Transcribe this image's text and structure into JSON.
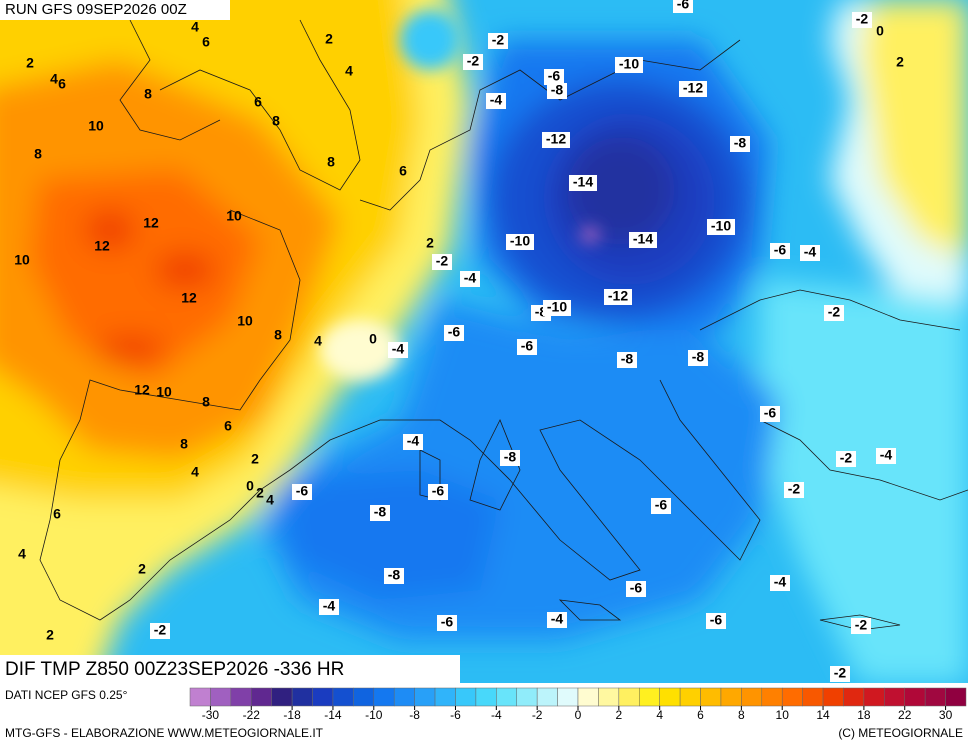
{
  "header": {
    "run": "RUN GFS 09SEP2026 00Z"
  },
  "footer": {
    "title": "DIF TMP Z850 00Z23SEP2026 -336 HR",
    "source": "DATI NCEP GFS 0.25°",
    "credit": "MTG-GFS - ELABORAZIONE WWW.METEOGIORNALE.IT",
    "copyright": "(C) METEOGIORNALE"
  },
  "colorbar": {
    "ticks": [
      -30,
      -22,
      -18,
      -14,
      -10,
      -8,
      -6,
      -4,
      -2,
      0,
      2,
      4,
      6,
      8,
      10,
      14,
      18,
      22,
      30
    ],
    "colors": [
      "#c080d0",
      "#a060c0",
      "#8040a8",
      "#602890",
      "#302080",
      "#2030a0",
      "#1a3cc0",
      "#1450d0",
      "#1064e0",
      "#1478f0",
      "#1e8cf5",
      "#28a0f8",
      "#30b4fa",
      "#38c8fa",
      "#48d8fa",
      "#68e4fa",
      "#90ecfa",
      "#bcf4fb",
      "#e0fbfc",
      "#fffcd0",
      "#fff8a0",
      "#fff060",
      "#fff020",
      "#ffe000",
      "#ffd000",
      "#ffbc00",
      "#ffa800",
      "#ff9400",
      "#ff8000",
      "#ff6c00",
      "#f85800",
      "#f04000",
      "#e02810",
      "#d01820",
      "#c01030",
      "#b00838",
      "#a00840",
      "#900040"
    ]
  },
  "contour_labels": [
    4,
    6,
    2,
    2,
    4,
    6,
    4,
    8,
    6,
    8,
    10,
    8,
    8,
    6,
    12,
    10,
    12,
    2,
    10,
    12,
    10,
    8,
    4,
    0,
    12,
    10,
    8,
    6,
    8,
    4,
    2,
    0,
    2,
    4,
    6,
    4,
    2,
    2,
    2,
    0,
    -2,
    -6,
    -2,
    -2,
    -4,
    -6,
    -8,
    -10,
    -12,
    -12,
    -8,
    -14,
    -10,
    -14,
    -10,
    -6,
    -4,
    -2,
    -4,
    -12,
    -8,
    -10,
    -6,
    -6,
    -4,
    -8,
    -8,
    -2,
    -6,
    -4,
    -8,
    -2,
    -4,
    -6,
    -6,
    -2,
    -6,
    -8,
    -8,
    -4,
    -6,
    -4,
    -6,
    -4,
    -6,
    -2,
    -2,
    -2
  ]
}
